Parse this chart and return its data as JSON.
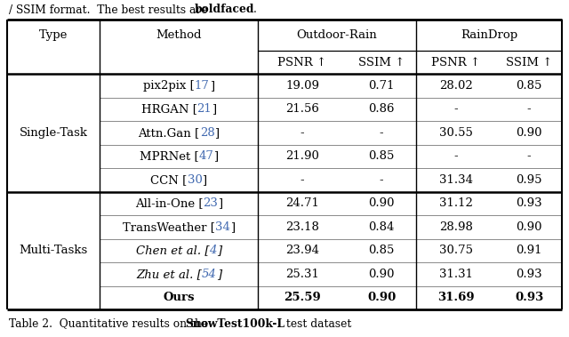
{
  "top_text_normal": "/ SSIM format.  The best results are ",
  "top_text_bold": "boldfaced",
  "top_text_end": ".",
  "caption_normal": "Table 2.  Quantitative results on the ",
  "caption_bold": "SnowTest100k-L",
  "caption_end": " test dataset",
  "group1_label": "Single-Task",
  "group2_label": "Multi-Tasks",
  "col_group1": "Outdoor-Rain",
  "col_group2": "RainDrop",
  "sub_header": [
    "PSNR ↑",
    "SSIM ↑",
    "PSNR ↑",
    "SSIM ↑"
  ],
  "rows": [
    {
      "method": "pix2pix",
      "ref": "17",
      "vals": [
        "19.09",
        "0.71",
        "28.02",
        "0.85"
      ],
      "bold": false,
      "italic": false,
      "group": 1
    },
    {
      "method": "HRGAN",
      "ref": "21",
      "vals": [
        "21.56",
        "0.86",
        "-",
        "-"
      ],
      "bold": false,
      "italic": false,
      "group": 1
    },
    {
      "method": "Attn.Gan",
      "ref": "28",
      "vals": [
        "-",
        "-",
        "30.55",
        "0.90"
      ],
      "bold": false,
      "italic": false,
      "group": 1
    },
    {
      "method": "MPRNet",
      "ref": "47",
      "vals": [
        "21.90",
        "0.85",
        "-",
        "-"
      ],
      "bold": false,
      "italic": false,
      "group": 1
    },
    {
      "method": "CCN",
      "ref": "30",
      "vals": [
        "-",
        "-",
        "31.34",
        "0.95"
      ],
      "bold": false,
      "italic": false,
      "group": 1
    },
    {
      "method": "All-in-One",
      "ref": "23",
      "vals": [
        "24.71",
        "0.90",
        "31.12",
        "0.93"
      ],
      "bold": false,
      "italic": false,
      "group": 2
    },
    {
      "method": "TransWeather",
      "ref": "34",
      "vals": [
        "23.18",
        "0.84",
        "28.98",
        "0.90"
      ],
      "bold": false,
      "italic": false,
      "group": 2
    },
    {
      "method": "Chen et al.",
      "ref": "4",
      "vals": [
        "23.94",
        "0.85",
        "30.75",
        "0.91"
      ],
      "bold": false,
      "italic": true,
      "group": 2
    },
    {
      "method": "Zhu et al.",
      "ref": "54",
      "vals": [
        "25.31",
        "0.90",
        "31.31",
        "0.93"
      ],
      "bold": false,
      "italic": true,
      "group": 2
    },
    {
      "method": "Ours",
      "ref": "",
      "vals": [
        "25.59",
        "0.90",
        "31.69",
        "0.93"
      ],
      "bold": true,
      "italic": false,
      "group": 2
    }
  ],
  "ref_color": "#4169B0",
  "text_color": "#000000",
  "line_color_thick": "#000000",
  "line_color_thin": "#555555",
  "fontsize_main": 9.5,
  "fontsize_header": 9.5,
  "fontsize_caption": 8.8
}
